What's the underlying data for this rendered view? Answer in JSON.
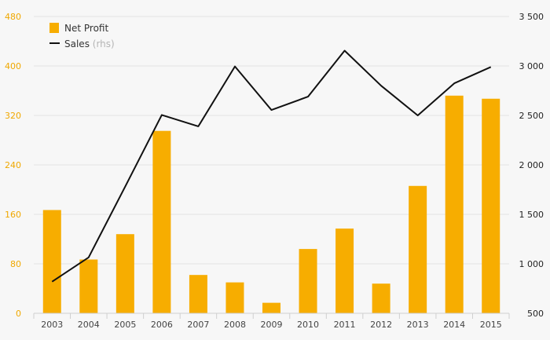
{
  "chart_data": {
    "type": "bar+line",
    "categories": [
      "2003",
      "2004",
      "2005",
      "2006",
      "2007",
      "2008",
      "2009",
      "2010",
      "2011",
      "2012",
      "2013",
      "2014",
      "2015"
    ],
    "series": [
      {
        "name": "Net Profit",
        "type": "bar",
        "axis": "left",
        "color": "#f7ad00",
        "values": [
          167,
          87,
          128,
          295,
          62,
          50,
          17,
          104,
          137,
          48,
          206,
          352,
          347
        ]
      },
      {
        "name": "Sales",
        "type": "line",
        "axis": "right",
        "color": "#111111",
        "values": [
          820,
          1065,
          1780,
          2505,
          2390,
          2995,
          2555,
          2690,
          3155,
          2800,
          2500,
          2825,
          2990
        ]
      }
    ],
    "legend": {
      "position": "top-left",
      "items": [
        {
          "label": "Net Profit",
          "suffix": ""
        },
        {
          "label": "Sales",
          "suffix": "(rhs)"
        }
      ]
    },
    "y_left": {
      "range": [
        0,
        480
      ],
      "ticks": [
        0,
        80,
        160,
        240,
        320,
        400,
        480
      ],
      "tick_labels": [
        "0",
        "80",
        "160",
        "240",
        "320",
        "400",
        "480"
      ],
      "color": "#f0a800"
    },
    "y_right": {
      "range": [
        500,
        3500
      ],
      "ticks": [
        500,
        1000,
        1500,
        2000,
        2500,
        3000,
        3500
      ],
      "tick_labels": [
        "500",
        "1 000",
        "1 500",
        "2 000",
        "2 500",
        "3 000",
        "3 500"
      ],
      "color": "#222222"
    },
    "grid": true,
    "title": "",
    "xlabel": "",
    "ylabel": ""
  }
}
